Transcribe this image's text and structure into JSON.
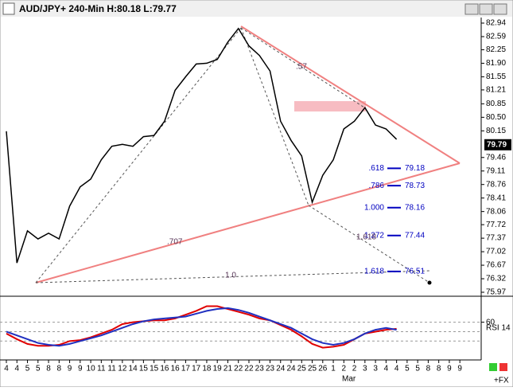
{
  "window_title": "AUD/JPY+ 240-Min H:80.18 L:79.77",
  "chart_data": [
    {
      "type": "line",
      "name": "price",
      "categories": [
        "4",
        "4",
        "5",
        "5",
        "8",
        "8",
        "9",
        "9",
        "10",
        "11",
        "11",
        "12",
        "14",
        "15",
        "15",
        "16",
        "16",
        "17",
        "17",
        "18",
        "19",
        "21",
        "22",
        "22",
        "23",
        "23",
        "24",
        "24",
        "25",
        "25",
        "26",
        "1",
        "2",
        "2",
        "3",
        "3",
        "4",
        "4",
        "5",
        "5",
        "8",
        "8",
        "9",
        "9"
      ],
      "month_label": "Mar",
      "series": [
        {
          "color": "#000000",
          "values": [
            80.14,
            76.73,
            77.56,
            77.35,
            77.5,
            77.35,
            78.2,
            78.7,
            78.9,
            79.4,
            79.75,
            79.8,
            79.75,
            80.0,
            80.03,
            80.4,
            81.2,
            81.55,
            81.88,
            81.9,
            82.0,
            82.45,
            82.8,
            82.35,
            82.1,
            81.7,
            80.4,
            79.9,
            79.5,
            78.3,
            79.0,
            79.4,
            80.2,
            80.4,
            80.75,
            80.3,
            80.2,
            79.93,
            null,
            null,
            null,
            null,
            null,
            null
          ]
        }
      ],
      "ylim": [
        75.97,
        82.94
      ],
      "yticks": [
        82.94,
        82.59,
        82.25,
        {
          "value": 81.9,
          "label": "81.90"
        },
        81.55,
        81.21,
        80.85,
        {
          "value": 80.5,
          "label": "80.50"
        },
        80.15,
        79.46,
        79.11,
        78.76,
        78.41,
        78.06,
        77.72,
        77.37,
        77.02,
        76.67,
        76.32,
        75.97
      ],
      "last_price": 79.79,
      "fib_levels": [
        {
          "ratio": ".618",
          "value": 79.18
        },
        {
          "ratio": ".786",
          "value": 78.73
        },
        {
          "ratio": "1.000",
          "value": 78.16
        },
        {
          "ratio": "1.272",
          "value": 77.44
        },
        {
          "ratio": "1.618",
          "value": 76.51
        }
      ],
      "annotations": [
        ".57",
        ".707",
        "1.0",
        "1.618"
      ]
    },
    {
      "type": "line",
      "name": "RSI 14",
      "series": [
        {
          "color": "#e00000",
          "values": [
            48,
            42,
            37,
            35,
            35,
            36,
            40,
            41,
            44,
            48,
            52,
            58,
            60,
            61,
            62,
            62,
            64,
            68,
            72,
            77,
            77,
            74,
            71,
            68,
            64,
            62,
            57,
            52,
            45,
            37,
            33,
            34,
            36,
            42,
            48,
            50,
            52,
            53,
            null,
            null,
            null,
            null,
            null,
            null
          ]
        },
        {
          "color": "#2030c0",
          "values": [
            50,
            46,
            42,
            38,
            36,
            35,
            37,
            40,
            43,
            46,
            50,
            54,
            58,
            61,
            63,
            64,
            65,
            66,
            69,
            72,
            74,
            75,
            73,
            70,
            66,
            62,
            58,
            54,
            48,
            42,
            38,
            36,
            38,
            42,
            48,
            52,
            54,
            52,
            null,
            null,
            null,
            null,
            null,
            null
          ]
        }
      ],
      "ylim": [
        20,
        85
      ],
      "yticks": [
        60
      ],
      "reference_lines": [
        40,
        50
      ]
    }
  ],
  "footer": "+FX"
}
